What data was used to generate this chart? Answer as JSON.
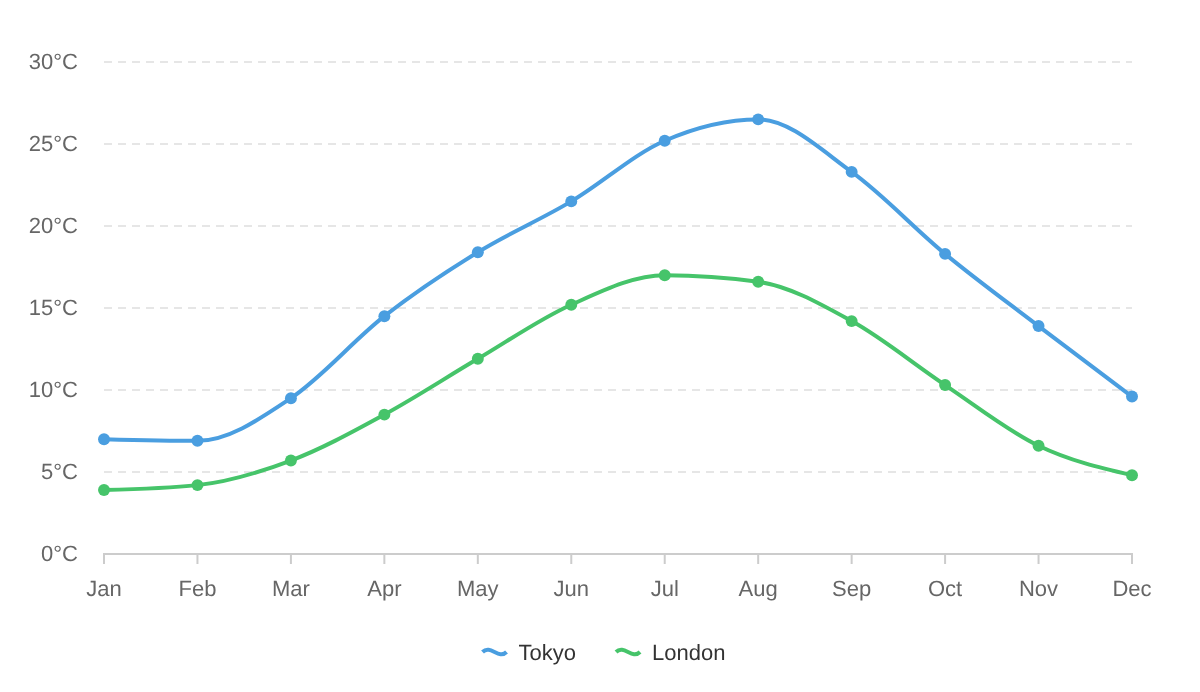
{
  "chart_data": {
    "type": "line",
    "categories": [
      "Jan",
      "Feb",
      "Mar",
      "Apr",
      "May",
      "Jun",
      "Jul",
      "Aug",
      "Sep",
      "Oct",
      "Nov",
      "Dec"
    ],
    "series": [
      {
        "name": "Tokyo",
        "color": "#4a9ee0",
        "values": [
          7.0,
          6.9,
          9.5,
          14.5,
          18.4,
          21.5,
          25.2,
          26.5,
          23.3,
          18.3,
          13.9,
          9.6
        ]
      },
      {
        "name": "London",
        "color": "#46c46a",
        "values": [
          3.9,
          4.2,
          5.7,
          8.5,
          11.9,
          15.2,
          17.0,
          16.6,
          14.2,
          10.3,
          6.6,
          4.8
        ]
      }
    ],
    "ylim": [
      0,
      30
    ],
    "yticks": [
      {
        "value": 0,
        "label": "0°C"
      },
      {
        "value": 5,
        "label": "5°C"
      },
      {
        "value": 10,
        "label": "10°C"
      },
      {
        "value": 15,
        "label": "15°C"
      },
      {
        "value": 20,
        "label": "20°C"
      },
      {
        "value": 25,
        "label": "25°C"
      },
      {
        "value": 30,
        "label": "30°C"
      }
    ],
    "grid": "y",
    "legend": "bottom",
    "marker": "circle",
    "line_style": "solid"
  }
}
